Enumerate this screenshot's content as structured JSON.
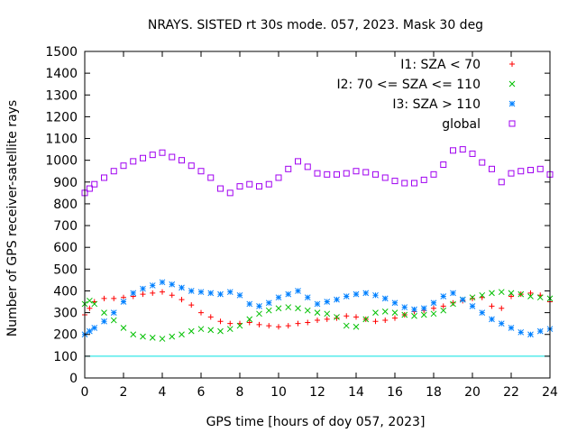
{
  "chart_data": {
    "type": "scatter",
    "title": "NRAYS. SISTED rt 30s mode. 057, 2023. Mask 30 deg",
    "xlabel": "GPS time [hours of doy 057, 2023]",
    "ylabel": "Number of GPS receiver-satellite rays",
    "xlim": [
      0,
      24
    ],
    "ylim": [
      0,
      1500
    ],
    "x_ticks": [
      0,
      2,
      4,
      6,
      8,
      10,
      12,
      14,
      16,
      18,
      20,
      22,
      24
    ],
    "x_tick_labels": [
      "0",
      "2",
      "4",
      "6",
      "8",
      "10",
      "12",
      "14",
      "16",
      "18",
      "20",
      "22",
      "24"
    ],
    "y_ticks": [
      0,
      100,
      200,
      300,
      400,
      500,
      600,
      700,
      800,
      900,
      1000,
      1100,
      1200,
      1300,
      1400,
      1500
    ],
    "y_tick_labels": [
      "0",
      "100",
      "200",
      "300",
      "400",
      "500",
      "600",
      "700",
      "800",
      "900",
      "1000",
      "1100",
      "1200",
      "1300",
      "1400",
      "1500"
    ],
    "grid": false,
    "legend_position": "top-right",
    "reference_line": {
      "y": 100,
      "color": "#00e0e0"
    },
    "series": [
      {
        "name": "I1: SZA < 70",
        "marker": "plus",
        "color": "#ff0000",
        "x": [
          0,
          0.25,
          0.5,
          1,
          1.5,
          2,
          2.5,
          3,
          3.5,
          4,
          4.5,
          5,
          5.5,
          6,
          6.5,
          7,
          7.5,
          8,
          8.5,
          9,
          9.5,
          10,
          10.5,
          11,
          11.5,
          12,
          12.5,
          13,
          13.5,
          14,
          14.5,
          15,
          15.5,
          16,
          16.5,
          17,
          17.5,
          18,
          18.5,
          19,
          19.5,
          20,
          20.5,
          21,
          21.5,
          22,
          22.5,
          23,
          23.5,
          24
        ],
        "values": [
          290,
          320,
          350,
          365,
          365,
          370,
          375,
          385,
          390,
          395,
          380,
          360,
          335,
          300,
          280,
          260,
          250,
          250,
          255,
          245,
          240,
          235,
          240,
          250,
          255,
          265,
          270,
          275,
          285,
          280,
          270,
          260,
          265,
          275,
          290,
          305,
          310,
          320,
          330,
          345,
          355,
          365,
          370,
          330,
          320,
          375,
          385,
          390,
          380,
          350
        ]
      },
      {
        "name": "I2: 70 <= SZA <= 110",
        "marker": "cross",
        "color": "#00c000",
        "x": [
          0,
          0.25,
          0.5,
          1,
          1.5,
          2,
          2.5,
          3,
          3.5,
          4,
          4.5,
          5,
          5.5,
          6,
          6.5,
          7,
          7.5,
          8,
          8.5,
          9,
          9.5,
          10,
          10.5,
          11,
          11.5,
          12,
          12.5,
          13,
          13.5,
          14,
          14.5,
          15,
          15.5,
          16,
          16.5,
          17,
          17.5,
          18,
          18.5,
          19,
          19.5,
          20,
          20.5,
          21,
          21.5,
          22,
          22.5,
          23,
          23.5,
          24
        ],
        "values": [
          340,
          355,
          340,
          300,
          265,
          230,
          200,
          190,
          185,
          180,
          190,
          200,
          215,
          225,
          220,
          215,
          225,
          240,
          270,
          295,
          310,
          320,
          325,
          320,
          310,
          300,
          295,
          280,
          240,
          235,
          270,
          300,
          305,
          300,
          290,
          285,
          290,
          295,
          310,
          340,
          360,
          370,
          380,
          390,
          395,
          390,
          385,
          375,
          370,
          365
        ]
      },
      {
        "name": "I3: SZA > 110",
        "marker": "star",
        "color": "#0080ff",
        "x": [
          0,
          0.25,
          0.5,
          1,
          1.5,
          2,
          2.5,
          3,
          3.5,
          4,
          4.5,
          5,
          5.5,
          6,
          6.5,
          7,
          7.5,
          8,
          8.5,
          9,
          9.5,
          10,
          10.5,
          11,
          11.5,
          12,
          12.5,
          13,
          13.5,
          14,
          14.5,
          15,
          15.5,
          16,
          16.5,
          17,
          17.5,
          18,
          18.5,
          19,
          19.5,
          20,
          20.5,
          21,
          21.5,
          22,
          22.5,
          23,
          23.5,
          24
        ],
        "values": [
          200,
          215,
          230,
          260,
          300,
          350,
          390,
          410,
          425,
          440,
          430,
          415,
          400,
          395,
          390,
          385,
          395,
          380,
          340,
          330,
          345,
          370,
          385,
          400,
          370,
          340,
          350,
          360,
          375,
          385,
          390,
          380,
          365,
          345,
          325,
          315,
          320,
          345,
          375,
          390,
          360,
          330,
          300,
          270,
          250,
          230,
          210,
          200,
          215,
          225
        ]
      },
      {
        "name": "global",
        "marker": "square",
        "color": "#a000f0",
        "x": [
          0,
          0.25,
          0.5,
          1,
          1.5,
          2,
          2.5,
          3,
          3.5,
          4,
          4.5,
          5,
          5.5,
          6,
          6.5,
          7,
          7.5,
          8,
          8.5,
          9,
          9.5,
          10,
          10.5,
          11,
          11.5,
          12,
          12.5,
          13,
          13.5,
          14,
          14.5,
          15,
          15.5,
          16,
          16.5,
          17,
          17.5,
          18,
          18.5,
          19,
          19.5,
          20,
          20.5,
          21,
          21.5,
          22,
          22.5,
          23,
          23.5,
          24
        ],
        "values": [
          850,
          870,
          890,
          920,
          950,
          975,
          995,
          1010,
          1025,
          1035,
          1015,
          1000,
          975,
          950,
          920,
          870,
          850,
          880,
          890,
          880,
          890,
          920,
          960,
          995,
          970,
          940,
          935,
          935,
          940,
          950,
          945,
          935,
          920,
          905,
          895,
          895,
          910,
          935,
          980,
          1045,
          1050,
          1030,
          990,
          960,
          900,
          940,
          950,
          955,
          960,
          935
        ]
      }
    ]
  }
}
